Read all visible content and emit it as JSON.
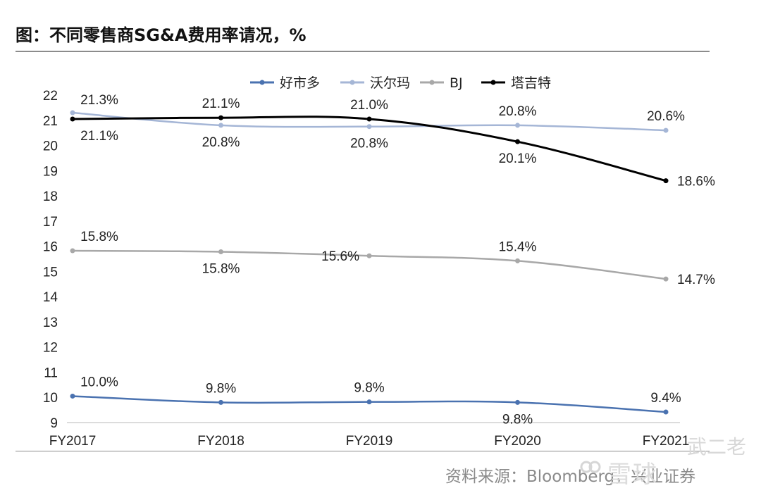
{
  "title": "图：不同零售商SG&A费用率请况，%",
  "source": "资料来源：Bloomberg，兴业证券",
  "watermark": {
    "site": "雪球",
    "author": "武二老"
  },
  "chart_data": {
    "type": "line",
    "title": "图：不同零售商SG&A费用率请况，%",
    "xlabel": "",
    "ylabel": "",
    "categories": [
      "FY2017",
      "FY2018",
      "FY2019",
      "FY2020",
      "FY2021"
    ],
    "ylim": [
      9,
      22
    ],
    "yticks": [
      9,
      10,
      11,
      12,
      13,
      14,
      15,
      16,
      17,
      18,
      19,
      20,
      21,
      22
    ],
    "grid": false,
    "legend_position": "top",
    "series": [
      {
        "name": "好市多",
        "color": "#4a72b0",
        "values": [
          10.05,
          9.8,
          9.82,
          9.8,
          9.42
        ],
        "labels": [
          "10.0%",
          "9.8%",
          "9.8%",
          "9.8%",
          "9.4%"
        ],
        "label_pos": [
          "above",
          "above",
          "above",
          "below",
          "above"
        ]
      },
      {
        "name": "沃尔玛",
        "color": "#a5b6d6",
        "values": [
          21.3,
          20.8,
          20.75,
          20.8,
          20.6
        ],
        "labels": [
          "21.3%",
          "20.8%",
          "20.8%",
          "20.8%",
          "20.6%"
        ],
        "label_pos": [
          "above-right",
          "below",
          "below",
          "above",
          "above"
        ]
      },
      {
        "name": "BJ",
        "color": "#a8a8a8",
        "values": [
          15.82,
          15.78,
          15.62,
          15.42,
          14.7
        ],
        "labels": [
          "15.8%",
          "15.8%",
          "15.6%",
          "15.4%",
          "14.7%"
        ],
        "label_pos": [
          "above",
          "below",
          "left",
          "above",
          "right"
        ]
      },
      {
        "name": "塔吉特",
        "color": "#000000",
        "values": [
          21.05,
          21.1,
          21.05,
          20.15,
          18.6
        ],
        "labels": [
          "21.1%",
          "21.1%",
          "21.0%",
          "20.1%",
          "18.6%"
        ],
        "label_pos": [
          "below-right",
          "above",
          "above",
          "below",
          "right"
        ]
      }
    ]
  }
}
